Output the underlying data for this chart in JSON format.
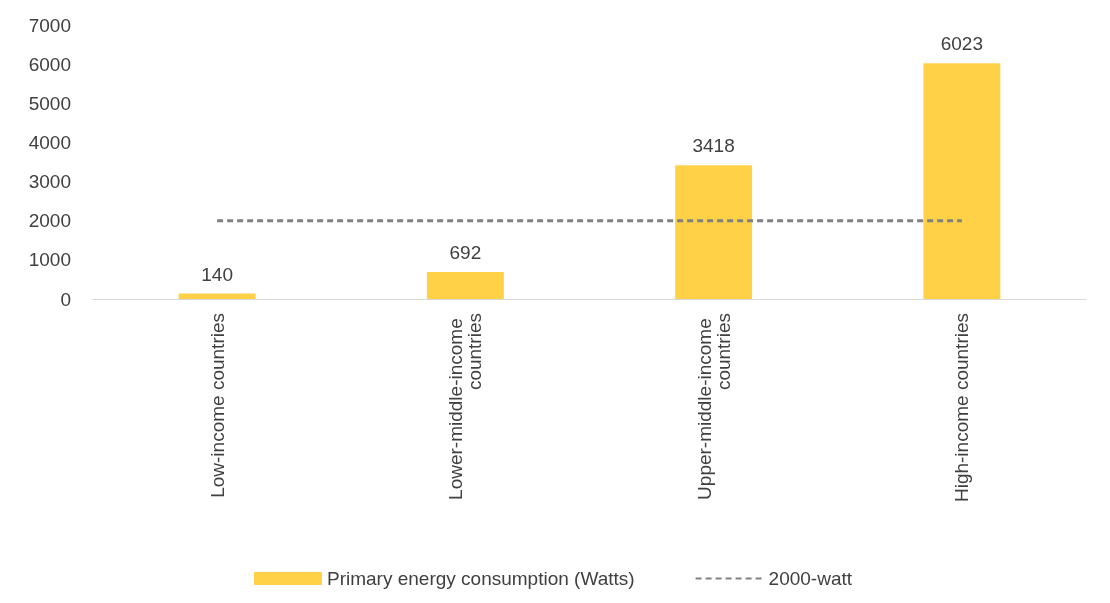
{
  "chart_data": {
    "type": "bar",
    "categories": [
      "Low-income countries",
      "Lower-middle-income countries",
      "Upper-middle-income countries",
      "High-income countries"
    ],
    "series": [
      {
        "name": "Primary energy consumption (Watts)",
        "color": "#ffd147",
        "values": [
          140,
          692,
          3418,
          6023
        ],
        "value_labels": [
          "140",
          "692",
          "3418",
          "6023"
        ]
      },
      {
        "name": "2000-watt",
        "type": "line",
        "color": "#808080",
        "values": [
          2000,
          2000,
          2000,
          2000
        ],
        "line_style": "dashed",
        "marker": "none"
      }
    ],
    "ylim": [
      0,
      7000
    ],
    "yticks": [
      0,
      1000,
      2000,
      3000,
      4000,
      5000,
      6000,
      7000
    ],
    "grid": false,
    "legend": "bottom"
  }
}
